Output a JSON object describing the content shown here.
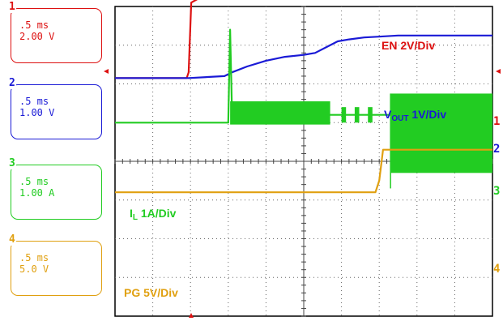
{
  "channels": [
    {
      "number": "1",
      "time": ".5 ms",
      "scale": "2.00 V",
      "color": "#dd1111"
    },
    {
      "number": "2",
      "time": ".5 ms",
      "scale": "1.00 V",
      "color": "#1a1ad6"
    },
    {
      "number": "3",
      "time": ".5 ms",
      "scale": "1.00 A",
      "color": "#22cc22"
    },
    {
      "number": "4",
      "time": ".5 ms",
      "scale": "5.0 V",
      "color": "#e0a010"
    }
  ],
  "chart_data": {
    "type": "line",
    "grid": true,
    "divisions": {
      "x": 10,
      "y": 8
    },
    "xlim": [
      0,
      10
    ],
    "ylim": [
      0,
      8
    ],
    "series": [
      {
        "channel": "1",
        "label": "EN 2V/Div",
        "color": "#dd1111",
        "x": [
          0,
          1.9,
          1.95,
          2.02,
          2.2,
          10
        ],
        "y": [
          6.15,
          6.15,
          6.3,
          8.1,
          8.2,
          8.2
        ]
      },
      {
        "channel": "2",
        "label": "VOUT 1V/Div",
        "color": "#1a1ad6",
        "x": [
          0,
          1.95,
          2.9,
          3.1,
          3.5,
          4.0,
          4.5,
          5.0,
          5.3,
          5.6,
          5.9,
          6.2,
          6.6,
          7.0,
          7.5,
          8.0,
          9.0,
          10
        ],
        "y": [
          6.15,
          6.15,
          6.2,
          6.3,
          6.45,
          6.6,
          6.7,
          6.75,
          6.8,
          6.95,
          7.1,
          7.15,
          7.2,
          7.22,
          7.25,
          7.25,
          7.25,
          7.25
        ]
      },
      {
        "channel": "3",
        "label": "IL 1A/Div",
        "color": "#22cc22",
        "x": [
          0,
          3.0,
          3.05,
          3.1,
          10
        ],
        "y": [
          5.0,
          5.0,
          7.4,
          5.2,
          5.2
        ]
      },
      {
        "channel": "4",
        "label": "PG 5V/Div",
        "color": "#e0a010",
        "x": [
          0,
          6.9,
          7.0,
          7.1,
          10
        ],
        "y": [
          3.2,
          3.2,
          3.5,
          4.3,
          4.3
        ]
      }
    ]
  },
  "trace_labels": {
    "en": "EN 2V/Div",
    "vout_main": "V",
    "vout_sub": "OUT",
    "vout_rest": " 1V/Div",
    "il_main": "I",
    "il_sub": "L",
    "il_rest": "  1A/Div",
    "pg": "PG 5V/Div"
  },
  "ref_markers": [
    "1",
    "2",
    "3",
    "4"
  ]
}
